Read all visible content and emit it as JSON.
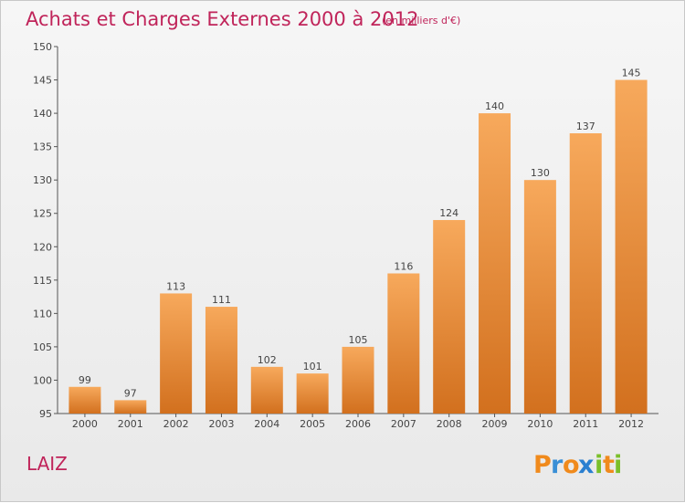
{
  "chart_data": {
    "type": "bar",
    "title": "Achats et Charges Externes 2000 à 2012",
    "subtitle": "(en milliers d'€)",
    "categories": [
      "2000",
      "2001",
      "2002",
      "2003",
      "2004",
      "2005",
      "2006",
      "2007",
      "2008",
      "2009",
      "2010",
      "2011",
      "2012"
    ],
    "values": [
      99,
      97,
      113,
      111,
      102,
      101,
      105,
      116,
      124,
      140,
      130,
      137,
      145
    ],
    "ylim": [
      95,
      150
    ],
    "yticks": [
      95,
      100,
      105,
      110,
      115,
      120,
      125,
      130,
      135,
      140,
      145,
      150
    ],
    "grid": false,
    "colors": {
      "bar_light": "#f7a95c",
      "bar_dark": "#d2701e",
      "title": "#c0245a"
    }
  },
  "place_name": "LAIZ",
  "logo": {
    "text": "Proxiti",
    "letters": [
      "P",
      "r",
      "o",
      "x",
      "i",
      "t",
      "i"
    ],
    "colors": [
      "#f08a1c",
      "#3a8fd6",
      "#f08a1c",
      "#2a7fd0",
      "#7bbf2a",
      "#f08a1c",
      "#7bbf2a"
    ]
  }
}
